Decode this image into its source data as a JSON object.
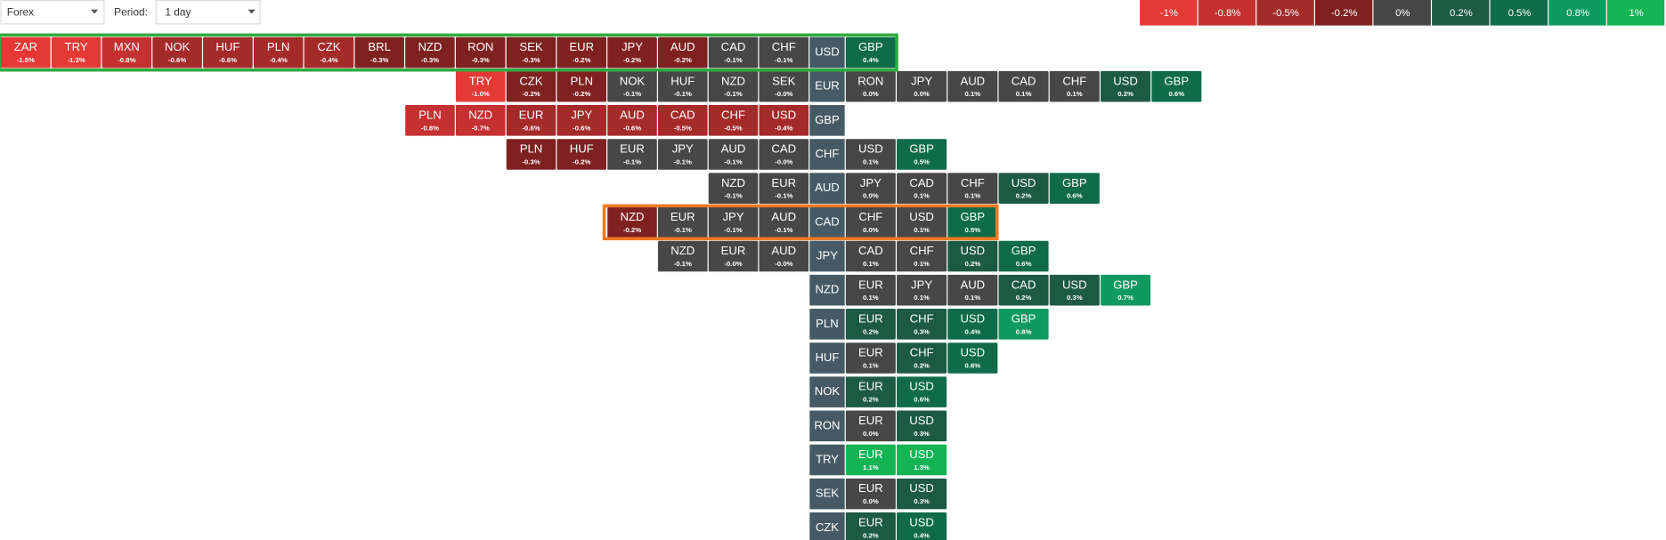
{
  "controls": {
    "market": "Forex",
    "period_label": "Period:",
    "period": "1 day"
  },
  "legend": [
    {
      "label": "-1%",
      "color": "#e53935"
    },
    {
      "label": "-0.8%",
      "color": "#c53030"
    },
    {
      "label": "-0.5%",
      "color": "#a52a2a"
    },
    {
      "label": "-0.2%",
      "color": "#7f2121"
    },
    {
      "label": "0%",
      "color": "#474747"
    },
    {
      "label": "0.2%",
      "color": "#1d5a44"
    },
    {
      "label": "0.5%",
      "color": "#0f6b49"
    },
    {
      "label": "0.8%",
      "color": "#0f9a5f"
    },
    {
      "label": "1%",
      "color": "#14b455"
    }
  ],
  "rows": [
    {
      "base": "USD",
      "left": [
        {
          "code": "ZAR",
          "change": "-1.5%"
        },
        {
          "code": "TRY",
          "change": "-1.3%"
        },
        {
          "code": "MXN",
          "change": "-0.8%"
        },
        {
          "code": "NOK",
          "change": "-0.6%"
        },
        {
          "code": "HUF",
          "change": "-0.6%"
        },
        {
          "code": "PLN",
          "change": "-0.4%"
        },
        {
          "code": "CZK",
          "change": "-0.4%"
        },
        {
          "code": "BRL",
          "change": "-0.3%"
        },
        {
          "code": "NZD",
          "change": "-0.3%"
        },
        {
          "code": "RON",
          "change": "-0.3%"
        },
        {
          "code": "SEK",
          "change": "-0.3%"
        },
        {
          "code": "EUR",
          "change": "-0.2%"
        },
        {
          "code": "JPY",
          "change": "-0.2%"
        },
        {
          "code": "AUD",
          "change": "-0.2%"
        },
        {
          "code": "CAD",
          "change": "-0.1%"
        },
        {
          "code": "CHF",
          "change": "-0.1%"
        }
      ],
      "right": [
        {
          "code": "GBP",
          "change": "0.4%"
        }
      ]
    },
    {
      "base": "EUR",
      "left": [
        {
          "code": "TRY",
          "change": "-1.0%"
        },
        {
          "code": "CZK",
          "change": "-0.2%"
        },
        {
          "code": "PLN",
          "change": "-0.2%"
        },
        {
          "code": "NOK",
          "change": "-0.1%"
        },
        {
          "code": "HUF",
          "change": "-0.1%"
        },
        {
          "code": "NZD",
          "change": "-0.1%"
        },
        {
          "code": "SEK",
          "change": "-0.0%"
        }
      ],
      "right": [
        {
          "code": "RON",
          "change": "0.0%"
        },
        {
          "code": "JPY",
          "change": "0.0%"
        },
        {
          "code": "AUD",
          "change": "0.1%"
        },
        {
          "code": "CAD",
          "change": "0.1%"
        },
        {
          "code": "CHF",
          "change": "0.1%"
        },
        {
          "code": "USD",
          "change": "0.2%"
        },
        {
          "code": "GBP",
          "change": "0.6%"
        }
      ]
    },
    {
      "base": "GBP",
      "left": [
        {
          "code": "PLN",
          "change": "-0.8%"
        },
        {
          "code": "NZD",
          "change": "-0.7%"
        },
        {
          "code": "EUR",
          "change": "-0.6%"
        },
        {
          "code": "JPY",
          "change": "-0.6%"
        },
        {
          "code": "AUD",
          "change": "-0.6%"
        },
        {
          "code": "CAD",
          "change": "-0.5%"
        },
        {
          "code": "CHF",
          "change": "-0.5%"
        },
        {
          "code": "USD",
          "change": "-0.4%"
        }
      ],
      "right": []
    },
    {
      "base": "CHF",
      "left": [
        {
          "code": "PLN",
          "change": "-0.3%"
        },
        {
          "code": "HUF",
          "change": "-0.2%"
        },
        {
          "code": "EUR",
          "change": "-0.1%"
        },
        {
          "code": "JPY",
          "change": "-0.1%"
        },
        {
          "code": "AUD",
          "change": "-0.1%"
        },
        {
          "code": "CAD",
          "change": "-0.0%"
        }
      ],
      "right": [
        {
          "code": "USD",
          "change": "0.1%"
        },
        {
          "code": "GBP",
          "change": "0.5%"
        }
      ]
    },
    {
      "base": "AUD",
      "left": [
        {
          "code": "NZD",
          "change": "-0.1%"
        },
        {
          "code": "EUR",
          "change": "-0.1%"
        }
      ],
      "right": [
        {
          "code": "JPY",
          "change": "0.0%"
        },
        {
          "code": "CAD",
          "change": "0.1%"
        },
        {
          "code": "CHF",
          "change": "0.1%"
        },
        {
          "code": "USD",
          "change": "0.2%"
        },
        {
          "code": "GBP",
          "change": "0.6%"
        }
      ]
    },
    {
      "base": "CAD",
      "left": [
        {
          "code": "NZD",
          "change": "-0.2%"
        },
        {
          "code": "EUR",
          "change": "-0.1%"
        },
        {
          "code": "JPY",
          "change": "-0.1%"
        },
        {
          "code": "AUD",
          "change": "-0.1%"
        }
      ],
      "right": [
        {
          "code": "CHF",
          "change": "0.0%"
        },
        {
          "code": "USD",
          "change": "0.1%"
        },
        {
          "code": "GBP",
          "change": "0.5%"
        }
      ]
    },
    {
      "base": "JPY",
      "left": [
        {
          "code": "NZD",
          "change": "-0.1%"
        },
        {
          "code": "EUR",
          "change": "-0.0%"
        },
        {
          "code": "AUD",
          "change": "-0.0%"
        }
      ],
      "right": [
        {
          "code": "CAD",
          "change": "0.1%"
        },
        {
          "code": "CHF",
          "change": "0.1%"
        },
        {
          "code": "USD",
          "change": "0.2%"
        },
        {
          "code": "GBP",
          "change": "0.6%"
        }
      ]
    },
    {
      "base": "NZD",
      "left": [],
      "right": [
        {
          "code": "EUR",
          "change": "0.1%"
        },
        {
          "code": "JPY",
          "change": "0.1%"
        },
        {
          "code": "AUD",
          "change": "0.1%"
        },
        {
          "code": "CAD",
          "change": "0.2%"
        },
        {
          "code": "USD",
          "change": "0.3%"
        },
        {
          "code": "GBP",
          "change": "0.7%"
        }
      ]
    },
    {
      "base": "PLN",
      "left": [],
      "right": [
        {
          "code": "EUR",
          "change": "0.2%"
        },
        {
          "code": "CHF",
          "change": "0.3%"
        },
        {
          "code": "USD",
          "change": "0.4%"
        },
        {
          "code": "GBP",
          "change": "0.8%"
        }
      ]
    },
    {
      "base": "HUF",
      "left": [],
      "right": [
        {
          "code": "EUR",
          "change": "0.1%"
        },
        {
          "code": "CHF",
          "change": "0.2%"
        },
        {
          "code": "USD",
          "change": "0.6%"
        }
      ]
    },
    {
      "base": "NOK",
      "left": [],
      "right": [
        {
          "code": "EUR",
          "change": "0.2%"
        },
        {
          "code": "USD",
          "change": "0.6%"
        }
      ]
    },
    {
      "base": "RON",
      "left": [],
      "right": [
        {
          "code": "EUR",
          "change": "0.0%"
        },
        {
          "code": "USD",
          "change": "0.3%"
        }
      ]
    },
    {
      "base": "TRY",
      "left": [],
      "right": [
        {
          "code": "EUR",
          "change": "1.1%"
        },
        {
          "code": "USD",
          "change": "1.3%"
        }
      ]
    },
    {
      "base": "SEK",
      "left": [],
      "right": [
        {
          "code": "EUR",
          "change": "0.0%"
        },
        {
          "code": "USD",
          "change": "0.3%"
        }
      ]
    },
    {
      "base": "CZK",
      "left": [],
      "right": [
        {
          "code": "EUR",
          "change": "0.2%"
        },
        {
          "code": "USD",
          "change": "0.4%"
        }
      ]
    }
  ]
}
